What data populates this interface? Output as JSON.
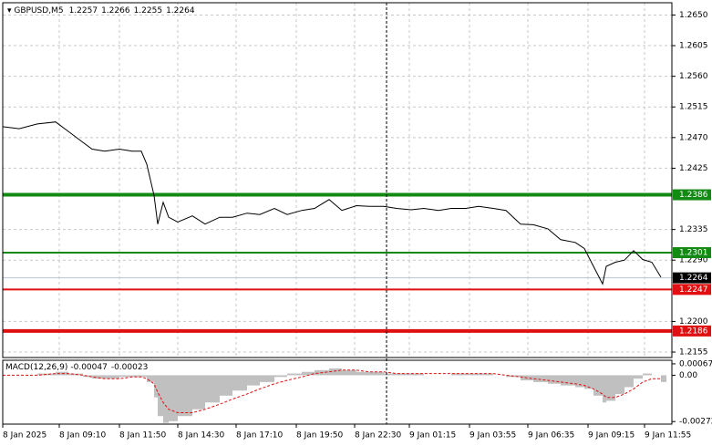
{
  "chart_data": {
    "type": "line",
    "title": "GBPUSD,M5",
    "ohlc": [
      1.2257,
      1.2266,
      1.2255,
      1.2264
    ],
    "x": [
      0,
      9,
      19,
      29,
      36,
      44,
      49,
      56,
      64,
      71,
      76,
      79,
      83,
      85,
      88,
      91,
      96,
      104,
      111,
      119,
      126,
      134,
      141,
      149,
      156,
      164,
      171,
      179,
      186,
      194,
      201,
      209,
      216,
      224,
      231,
      239,
      246,
      254,
      261,
      269,
      276,
      284,
      291,
      299,
      306,
      314,
      319,
      324,
      329,
      331,
      336,
      341,
      346,
      351,
      356,
      361
    ],
    "xlim": [
      0,
      367
    ],
    "xticks": [
      {
        "value": 0,
        "label": "8 Jan 2025"
      },
      {
        "value": 31,
        "label": "8 Jan 09:10"
      },
      {
        "value": 64,
        "label": "8 Jan 11:50"
      },
      {
        "value": 96,
        "label": "8 Jan 14:30"
      },
      {
        "value": 128,
        "label": "8 Jan 17:10"
      },
      {
        "value": 161,
        "label": "8 Jan 19:50"
      },
      {
        "value": 193,
        "label": "8 Jan 22:30"
      },
      {
        "value": 223,
        "label": "9 Jan 01:15"
      },
      {
        "value": 256,
        "label": "9 Jan 03:55"
      },
      {
        "value": 288,
        "label": "9 Jan 06:35"
      },
      {
        "value": 321,
        "label": "9 Jan 09:15"
      },
      {
        "value": 352,
        "label": "9 Jan 11:55"
      }
    ],
    "series": [
      {
        "color": "#000000",
        "values": [
          1.2486,
          1.2483,
          1.249,
          1.2493,
          1.2479,
          1.2463,
          1.2453,
          1.245,
          1.2453,
          1.245,
          1.245,
          1.2431,
          1.2385,
          1.2343,
          1.2375,
          1.2353,
          1.2346,
          1.2355,
          1.2343,
          1.2353,
          1.2353,
          1.2359,
          1.2357,
          1.2366,
          1.2357,
          1.2363,
          1.2366,
          1.2379,
          1.2363,
          1.237,
          1.2369,
          1.2369,
          1.2366,
          1.2364,
          1.2366,
          1.2363,
          1.2366,
          1.2366,
          1.2369,
          1.2366,
          1.2363,
          1.2343,
          1.2342,
          1.2336,
          1.232,
          1.2316,
          1.2307,
          1.2281,
          1.2255,
          1.2281,
          1.2287,
          1.229,
          1.2304,
          1.2291,
          1.2287,
          1.2265
        ]
      }
    ],
    "ylim": [
      1.2147,
      1.2668
    ],
    "yticks": [
      {
        "value": 1.265,
        "label": "1.2650"
      },
      1.2605,
      {
        "value": 1.256,
        "label": "1.2560"
      },
      1.2515,
      {
        "value": 1.247,
        "label": "1.2470"
      },
      1.2425,
      1.2335,
      {
        "value": 1.229,
        "label": "1.2290"
      },
      {
        "value": 1.22,
        "label": "1.2200"
      },
      1.2155
    ],
    "grid": true,
    "levels": [
      {
        "value": 1.2386,
        "color": "#138a13",
        "weight": "thick"
      },
      {
        "value": 1.2301,
        "color": "#138a13",
        "weight": "thin"
      },
      {
        "value": 1.2247,
        "color": "#e01010",
        "weight": "thin"
      },
      {
        "value": 1.2186,
        "color": "#e01010",
        "weight": "thick"
      }
    ],
    "last_price": 1.2264,
    "macd": {
      "title": "MACD(12,26,9)",
      "readout": [
        -0.00047,
        -0.00023
      ],
      "histogram_color": "#c0c0c0",
      "signal_color": "#e01010",
      "histogram": [
        0,
        0,
        0.0001,
        0.0002,
        0.0001,
        -0.0001,
        -0.0002,
        -0.0002,
        -0.0001,
        -0.0001,
        -0.0001,
        -0.0004,
        -0.0013,
        -0.0024,
        -0.0028,
        -0.0027,
        -0.0024,
        -0.002,
        -0.0016,
        -0.0012,
        -0.0009,
        -0.0006,
        -0.0004,
        -0.0001,
        0.0001,
        0.0002,
        0.0003,
        0.0004,
        0.0003,
        0.0002,
        0.0002,
        0.0001,
        0.0001,
        0.0001,
        0,
        0,
        0.0001,
        0.0001,
        0.0001,
        0,
        -0.0001,
        -0.0003,
        -0.0004,
        -0.0005,
        -0.0006,
        -0.0007,
        -0.0008,
        -0.0012,
        -0.0016,
        -0.0015,
        -0.0011,
        -0.0007,
        -0.0002,
        0.0001,
        0,
        -0.0004
      ],
      "signal": [
        0,
        0,
        0,
        0.0001,
        0.0001,
        0,
        -0.0001,
        -0.0002,
        -0.0002,
        -0.0001,
        -0.0001,
        -0.0002,
        -0.0005,
        -0.001,
        -0.0016,
        -0.002,
        -0.0022,
        -0.0022,
        -0.002,
        -0.0017,
        -0.0014,
        -0.0011,
        -0.0008,
        -0.0005,
        -0.0003,
        -0.0001,
        0.0001,
        0.0002,
        0.0003,
        0.0003,
        0.0002,
        0.0002,
        0.0001,
        0.0001,
        0.0001,
        0.0001,
        0.0001,
        0.0001,
        0.0001,
        0.0001,
        0,
        -0.0001,
        -0.0002,
        -0.0003,
        -0.0004,
        -0.0005,
        -0.0006,
        -0.0008,
        -0.0011,
        -0.0013,
        -0.0013,
        -0.0011,
        -0.0008,
        -0.0004,
        -0.0002,
        -0.0002
      ],
      "ylim": [
        -0.00287,
        0.00088
      ],
      "yticks": [
        0.00067,
        {
          "value": 0,
          "label": "0.00"
        },
        -0.00272
      ]
    }
  }
}
